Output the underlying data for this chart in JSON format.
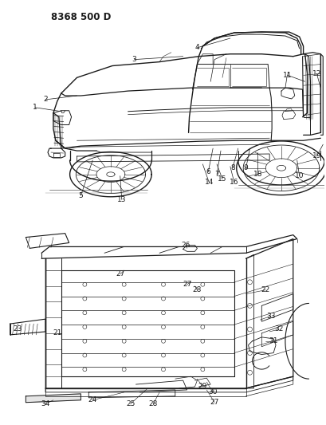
{
  "title": "8368 500 D",
  "bg_color": "#ffffff",
  "line_color": "#1a1a1a",
  "title_fontsize": 8.5,
  "label_fontsize": 6.5,
  "figsize": [
    4.1,
    5.33
  ],
  "dpi": 100
}
